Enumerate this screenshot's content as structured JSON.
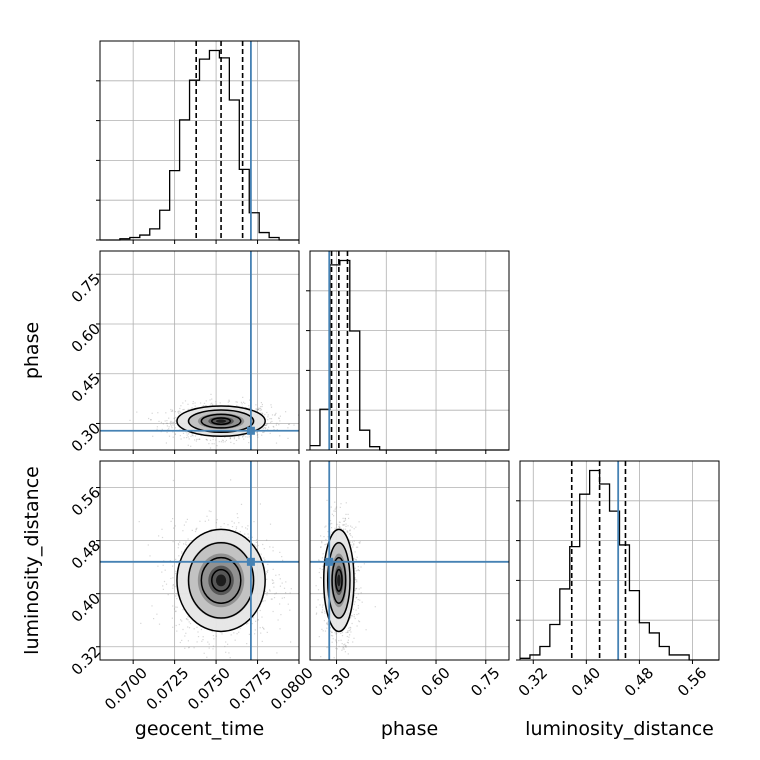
{
  "chart_data": {
    "type": "corner",
    "title": "",
    "parameters": [
      "geocent_time",
      "phase",
      "luminosity_distance"
    ],
    "truth": {
      "geocent_time": 0.0771,
      "phase": 0.278,
      "luminosity_distance": 0.448
    },
    "quantiles": {
      "geocent_time": [
        0.0738,
        0.0753,
        0.0766
      ],
      "phase": [
        0.285,
        0.307,
        0.333
      ],
      "luminosity_distance": [
        0.378,
        0.42,
        0.459
      ]
    },
    "ranges": {
      "geocent_time": [
        0.068,
        0.08
      ],
      "phase": [
        0.22,
        0.82
      ],
      "luminosity_distance": [
        0.3,
        0.6
      ]
    },
    "ticks": {
      "geocent_time": {
        "values": [
          0.07,
          0.0725,
          0.075,
          0.0775,
          0.08
        ],
        "labels": [
          "0.0700",
          "0.0725",
          "0.0750",
          "0.0775",
          "0.0800"
        ]
      },
      "phase": {
        "values": [
          0.3,
          0.45,
          0.6,
          0.75
        ],
        "labels": [
          "0.30",
          "0.45",
          "0.60",
          "0.75"
        ]
      },
      "luminosity_distance": {
        "values": [
          0.32,
          0.4,
          0.48,
          0.56
        ],
        "labels": [
          "0.32",
          "0.40",
          "0.48",
          "0.56"
        ]
      }
    },
    "histograms": {
      "geocent_time": {
        "bin_edges": [
          0.068,
          0.0686,
          0.0692,
          0.0698,
          0.0704,
          0.071,
          0.0716,
          0.0722,
          0.0728,
          0.0734,
          0.074,
          0.0746,
          0.0752,
          0.0758,
          0.0764,
          0.077,
          0.0776,
          0.0782,
          0.0788,
          0.0794,
          0.08
        ],
        "counts": [
          0,
          0,
          1,
          2,
          4,
          9,
          24,
          56,
          97,
          129,
          146,
          153,
          147,
          113,
          57,
          22,
          6,
          2,
          0,
          0
        ]
      },
      "phase": {
        "bin_edges": [
          0.22,
          0.25,
          0.28,
          0.31,
          0.34,
          0.37,
          0.4,
          0.43,
          0.46,
          0.49,
          0.52,
          0.55,
          0.58,
          0.61,
          0.64,
          0.67,
          0.7,
          0.73,
          0.76,
          0.79,
          0.82
        ],
        "counts": [
          4,
          37,
          168,
          172,
          108,
          18,
          3,
          0,
          0,
          0,
          0,
          0,
          0,
          0,
          0,
          0,
          0,
          0,
          0,
          0
        ]
      },
      "luminosity_distance": {
        "bin_edges": [
          0.3,
          0.315,
          0.33,
          0.345,
          0.36,
          0.375,
          0.39,
          0.405,
          0.42,
          0.435,
          0.45,
          0.465,
          0.48,
          0.495,
          0.51,
          0.525,
          0.54,
          0.555,
          0.57,
          0.585,
          0.6
        ],
        "counts": [
          1,
          3,
          8,
          21,
          42,
          67,
          98,
          112,
          104,
          88,
          68,
          41,
          22,
          16,
          8,
          3,
          3,
          0,
          0,
          0
        ]
      }
    },
    "grid": true,
    "colors": {
      "line": "#000000",
      "truth": "#4682b4",
      "grid": "#b0b0b0",
      "points": "#8c8c8c",
      "fill_levels": [
        "#e6e6e6",
        "#c0c0c0",
        "#8e8e8e",
        "#545454",
        "#1a1a1a"
      ]
    }
  }
}
